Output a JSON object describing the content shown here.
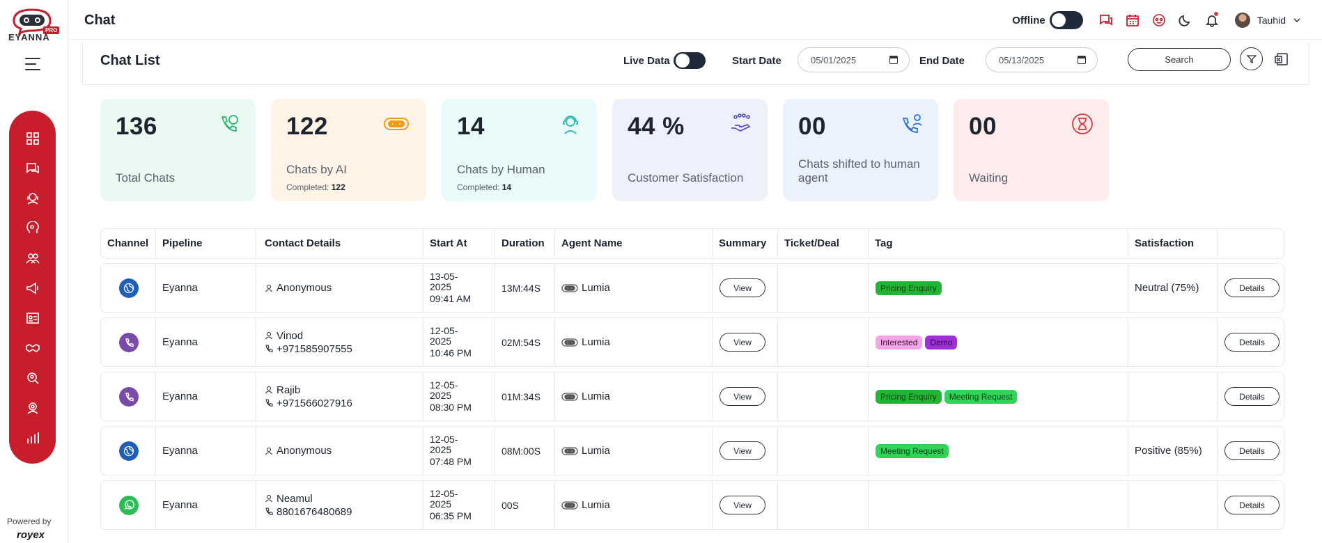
{
  "brand": {
    "logo_word": "EYANNA",
    "logo_badge": "PRO",
    "powered_by": "Powered by",
    "powered_brand": "royex"
  },
  "header": {
    "title": "Chat",
    "offline_label": "Offline",
    "user_name": "Tauhid"
  },
  "sidebar": {
    "items": [
      {
        "icon": "dashboard-icon"
      },
      {
        "icon": "chat-icon"
      },
      {
        "icon": "agent-icon"
      },
      {
        "icon": "ai-brain-icon"
      },
      {
        "icon": "users-icon"
      },
      {
        "icon": "megaphone-icon"
      },
      {
        "icon": "contacts-card-icon"
      },
      {
        "icon": "handshake-icon"
      },
      {
        "icon": "search-user-icon"
      },
      {
        "icon": "support-icon"
      },
      {
        "icon": "analytics-icon"
      }
    ]
  },
  "chat_list": {
    "title": "Chat List",
    "live_data_label": "Live Data",
    "start_date_label": "Start Date",
    "start_date_value": "05/01/2025",
    "end_date_label": "End Date",
    "end_date_value": "05/13/2025",
    "search_label": "Search"
  },
  "stats": [
    {
      "value": "136",
      "label": "Total Chats",
      "sub_label": "",
      "sub_value": "",
      "bg": "#eafaf2",
      "icon": "phone-chat-icon"
    },
    {
      "value": "122",
      "label": "Chats by AI",
      "sub_label": "Completed:",
      "sub_value": "122",
      "bg": "#fff4e6",
      "icon": "robot-icon"
    },
    {
      "value": "14",
      "label": "Chats by Human",
      "sub_label": "Completed:",
      "sub_value": "14",
      "bg": "#e8fafa",
      "icon": "headset-agent-icon"
    },
    {
      "value": "44 %",
      "label": "Customer Satisfaction",
      "sub_label": "",
      "sub_value": "",
      "bg": "#eef0fc",
      "icon": "rating-hand-icon"
    },
    {
      "value": "00",
      "label": "Chats shifted to human agent",
      "sub_label": "",
      "sub_value": "",
      "bg": "#eaf2fd",
      "icon": "transfer-call-icon"
    },
    {
      "value": "00",
      "label": "Waiting",
      "sub_label": "",
      "sub_value": "",
      "bg": "#fdeceb",
      "icon": "hourglass-icon"
    }
  ],
  "table": {
    "columns": [
      "Channel",
      "Pipeline",
      "Contact Details",
      "Start At",
      "Duration",
      "Agent Name",
      "Summary",
      "Ticket/Deal",
      "Tag",
      "Satisfaction",
      ""
    ],
    "view_label": "View",
    "details_label": "Details",
    "rows": [
      {
        "channel": "web",
        "pipeline": "Eyanna",
        "name": "Anonymous",
        "phone": "",
        "date": "13-05-",
        "year": "2025",
        "time": "09:41 AM",
        "duration": "13M:44S",
        "agent": "Lumia",
        "tags": [
          {
            "text": "Pricing Enquiry",
            "color": "green"
          }
        ],
        "satisfaction": "Neutral (75%)"
      },
      {
        "channel": "viber",
        "pipeline": "Eyanna",
        "name": "Vinod",
        "phone": "+971585907555",
        "date": "12-05-",
        "year": "2025",
        "time": "10:46 PM",
        "duration": "02M:54S",
        "agent": "Lumia",
        "tags": [
          {
            "text": "Interested",
            "color": "pink"
          },
          {
            "text": "Demo",
            "color": "purple"
          }
        ],
        "satisfaction": ""
      },
      {
        "channel": "viber",
        "pipeline": "Eyanna",
        "name": "Rajib",
        "phone": "+971566027916",
        "date": "12-05-",
        "year": "2025",
        "time": "08:30 PM",
        "duration": "01M:34S",
        "agent": "Lumia",
        "tags": [
          {
            "text": "Pricing Enquiry",
            "color": "green"
          },
          {
            "text": "Meeting Request",
            "color": "lgreen"
          }
        ],
        "satisfaction": ""
      },
      {
        "channel": "web",
        "pipeline": "Eyanna",
        "name": "Anonymous",
        "phone": "",
        "date": "12-05-",
        "year": "2025",
        "time": "07:48 PM",
        "duration": "08M:00S",
        "agent": "Lumia",
        "tags": [
          {
            "text": "Meeting Request",
            "color": "lgreen"
          }
        ],
        "satisfaction": "Positive (85%)"
      },
      {
        "channel": "whatsapp",
        "pipeline": "Eyanna",
        "name": "Neamul",
        "phone": "8801676480689",
        "date": "12-05-",
        "year": "2025",
        "time": "06:35 PM",
        "duration": "00S",
        "agent": "Lumia",
        "tags": [],
        "satisfaction": ""
      }
    ]
  },
  "colors": {
    "brand_red": "#c81e2b",
    "dark": "#1f2a3b"
  }
}
